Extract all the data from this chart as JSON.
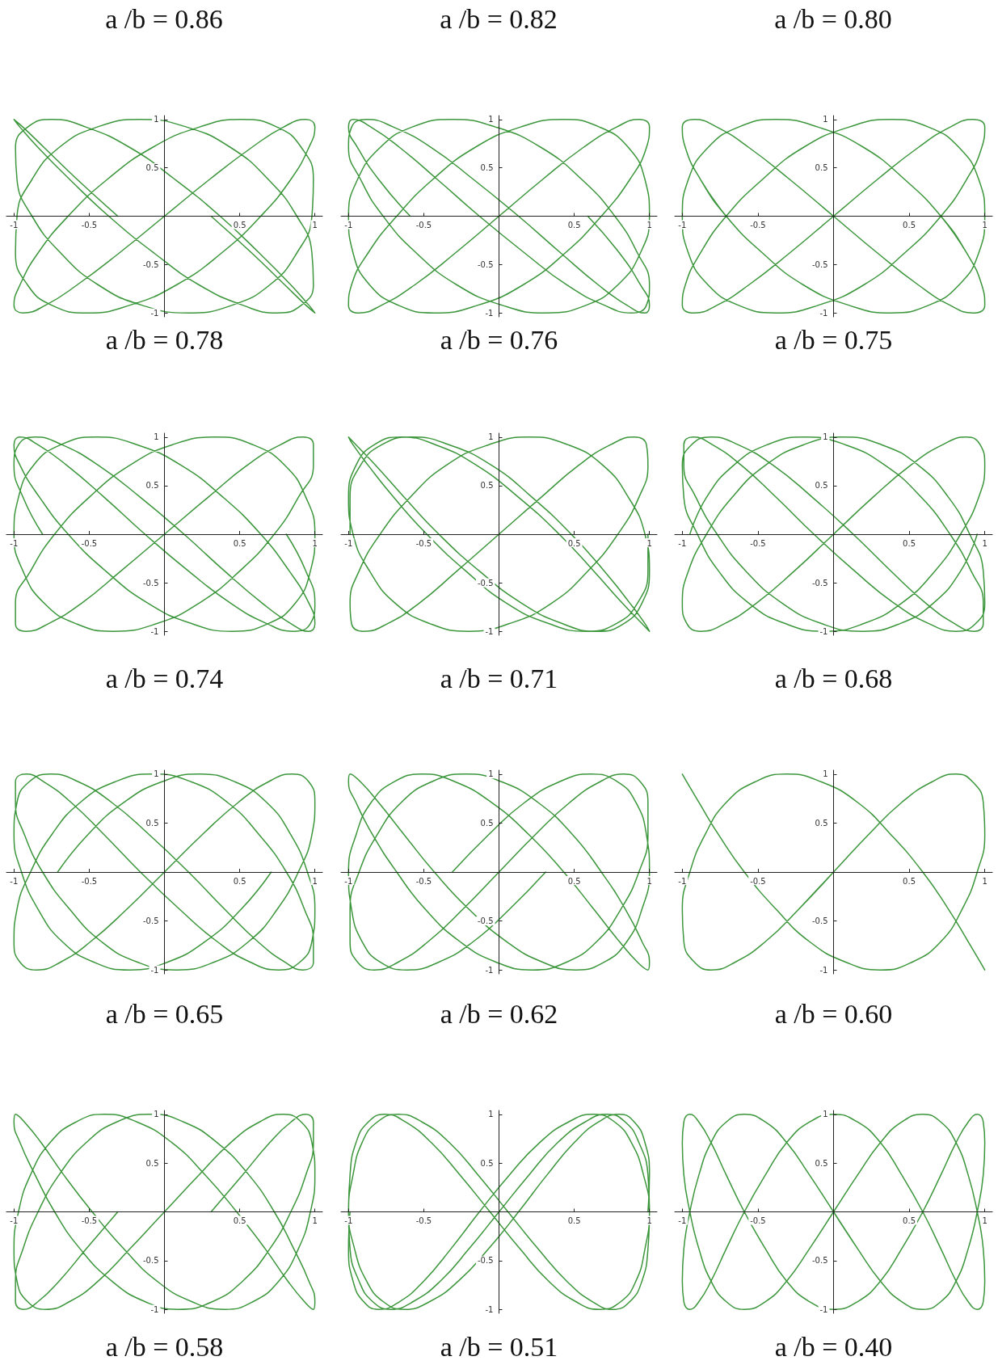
{
  "chart_data": [
    {
      "type": "other",
      "annotations": [
        "a /b = 0.86",
        "a /b = 0.82",
        "a /b = 0.80"
      ]
    },
    {
      "type": "line",
      "title": "a /b = 0.78",
      "color": "#3c963c",
      "xlim": [
        -1.05,
        1.05
      ],
      "ylim": [
        -1.04,
        1.04
      ],
      "xticks": [
        -1,
        -0.5,
        0.5,
        1
      ],
      "yticks": [
        -1,
        -0.5,
        0.5,
        1
      ],
      "x": [
        0.31,
        0.58,
        0.8,
        0.94,
        1,
        0.96,
        0.84,
        0.63,
        0.37,
        0.07,
        -0.23,
        -0.52,
        -0.75,
        -0.91,
        -0.99,
        -0.98,
        -0.88,
        -0.69,
        -0.44,
        -0.15,
        0.16,
        0.45,
        0.7,
        0.88,
        0.98,
        0.99,
        0.91,
        0.75,
        0.51,
        0.23,
        -0.08,
        -0.38,
        -0.64,
        -0.84,
        -0.96,
        -1,
        -0.94,
        -0.79,
        -0.58,
        -0.3,
        0,
        0.3,
        0.58,
        0.79,
        0.94,
        1,
        0.96,
        0.84,
        0.64,
        0.38,
        0.08,
        -0.23,
        -0.51,
        -0.75,
        -0.91,
        -0.99,
        -0.98,
        -0.88,
        -0.7,
        -0.45,
        -0.16,
        0.15,
        0.44,
        0.69,
        0.88,
        0.98,
        0.99,
        0.91,
        0.75,
        0.52,
        0.23,
        -0.07,
        -0.37,
        -0.63,
        -0.84,
        -0.96,
        -1,
        -0.94,
        -0.8,
        -0.58,
        -0.31
      ],
      "values": [
        0,
        -0.38,
        -0.71,
        -0.92,
        -1,
        -0.92,
        -0.71,
        -0.38,
        0,
        0.38,
        0.71,
        0.92,
        1,
        0.92,
        0.71,
        0.38,
        0,
        -0.38,
        -0.71,
        -0.92,
        -1,
        -0.92,
        -0.71,
        -0.38,
        0,
        0.38,
        0.71,
        0.92,
        1,
        0.92,
        0.71,
        0.38,
        0,
        -0.38,
        -0.71,
        -0.92,
        -1,
        -0.92,
        -0.71,
        -0.38,
        0,
        0.38,
        0.71,
        0.92,
        1,
        0.92,
        0.71,
        0.38,
        0,
        -0.38,
        -0.71,
        -0.92,
        -1,
        -0.92,
        -0.71,
        -0.38,
        0,
        0.38,
        0.71,
        0.92,
        1,
        0.92,
        0.71,
        0.38,
        0,
        -0.38,
        -0.71,
        -0.92,
        -1,
        -0.92,
        -0.71,
        -0.38,
        0,
        0.38,
        0.71,
        0.92,
        1,
        0.92,
        0.71,
        0.38,
        0
      ]
    },
    {
      "type": "line",
      "title": "a /b = 0.76",
      "color": "#3c963c",
      "xlim": [
        -1.05,
        1.05
      ],
      "ylim": [
        -1.04,
        1.04
      ],
      "xticks": [
        -1,
        -0.5,
        0.5,
        1
      ],
      "yticks": [
        -1,
        -0.5,
        0.5,
        1
      ],
      "x": [
        0.59,
        0.8,
        0.94,
        1,
        0.97,
        0.85,
        0.66,
        0.41,
        0.13,
        -0.17,
        -0.45,
        -0.7,
        -0.88,
        -0.98,
        -1,
        -0.92,
        -0.77,
        -0.55,
        -0.28,
        0.02,
        0.31,
        0.58,
        0.79,
        0.94,
        1,
        0.97,
        0.86,
        0.67,
        0.43,
        0.14,
        -0.16,
        -0.44,
        -0.68,
        -0.87,
        -0.98,
        -1,
        -0.93,
        -0.78,
        -0.56,
        -0.29,
        0,
        0.29,
        0.56,
        0.78,
        0.93,
        1,
        0.98,
        0.87,
        0.68,
        0.44,
        0.16,
        -0.14,
        -0.43,
        -0.67,
        -0.86,
        -0.97,
        -1,
        -0.94,
        -0.79,
        -0.58,
        -0.31,
        -0.02,
        0.28,
        0.55,
        0.77,
        0.92,
        1,
        0.98,
        0.88,
        0.7,
        0.45,
        0.17,
        -0.13,
        -0.41,
        -0.66,
        -0.85,
        -0.97,
        -1,
        -0.94,
        -0.8,
        -0.59
      ],
      "values": [
        0,
        -0.38,
        -0.71,
        -0.92,
        -1,
        -0.92,
        -0.71,
        -0.38,
        0,
        0.38,
        0.71,
        0.92,
        1,
        0.92,
        0.71,
        0.38,
        0,
        -0.38,
        -0.71,
        -0.92,
        -1,
        -0.92,
        -0.71,
        -0.38,
        0,
        0.38,
        0.71,
        0.92,
        1,
        0.92,
        0.71,
        0.38,
        0,
        -0.38,
        -0.71,
        -0.92,
        -1,
        -0.92,
        -0.71,
        -0.38,
        0,
        0.38,
        0.71,
        0.92,
        1,
        0.92,
        0.71,
        0.38,
        0,
        -0.38,
        -0.71,
        -0.92,
        -1,
        -0.92,
        -0.71,
        -0.38,
        0,
        0.38,
        0.71,
        0.92,
        1,
        0.92,
        0.71,
        0.38,
        0,
        -0.38,
        -0.71,
        -0.92,
        -1,
        -0.92,
        -0.71,
        -0.38,
        0,
        0.38,
        0.71,
        0.92,
        1,
        0.92,
        0.71,
        0.38,
        0
      ]
    },
    {
      "type": "line",
      "title": "a /b = 0.75",
      "color": "#3c963c",
      "xlim": [
        -1.05,
        1.05
      ],
      "ylim": [
        -1.04,
        1.04
      ],
      "xticks": [
        -1,
        -0.5,
        0.5,
        1
      ],
      "yticks": [
        -1,
        -0.5,
        0.5,
        1
      ],
      "x": [
        0.71,
        0.88,
        0.98,
        1,
        0.92,
        0.77,
        0.56,
        0.29,
        0,
        -0.29,
        -0.56,
        -0.77,
        -0.92,
        -1,
        -0.98,
        -0.88,
        -0.71,
        -0.47,
        -0.2,
        0.1,
        0.38,
        0.63,
        0.83,
        0.96,
        1,
        0.96,
        0.83,
        0.63,
        0.38,
        0.1,
        -0.2,
        -0.47,
        -0.71,
        -0.88,
        -0.98,
        -1,
        -0.92,
        -0.77,
        -0.56,
        -0.29,
        0,
        0.29,
        0.56,
        0.77,
        0.92,
        1,
        0.98,
        0.88,
        0.71,
        0.47,
        0.2,
        -0.1,
        -0.38,
        -0.63,
        -0.83,
        -0.96,
        -1,
        -0.96,
        -0.83,
        -0.63,
        -0.38,
        -0.1,
        0.2,
        0.47,
        0.71,
        0.88,
        0.98,
        1,
        0.92,
        0.77,
        0.56,
        0.29,
        0,
        -0.29,
        -0.56,
        -0.77,
        -0.92,
        -1,
        -0.98,
        -0.88,
        -0.71
      ],
      "values": [
        0,
        -0.38,
        -0.71,
        -0.92,
        -1,
        -0.92,
        -0.71,
        -0.38,
        0,
        0.38,
        0.71,
        0.92,
        1,
        0.92,
        0.71,
        0.38,
        0,
        -0.38,
        -0.71,
        -0.92,
        -1,
        -0.92,
        -0.71,
        -0.38,
        0,
        0.38,
        0.71,
        0.92,
        1,
        0.92,
        0.71,
        0.38,
        0,
        -0.38,
        -0.71,
        -0.92,
        -1,
        -0.92,
        -0.71,
        -0.38,
        0,
        0.38,
        0.71,
        0.92,
        1,
        0.92,
        0.71,
        0.38,
        0,
        -0.38,
        -0.71,
        -0.92,
        -1,
        -0.92,
        -0.71,
        -0.38,
        0,
        0.38,
        0.71,
        0.92,
        1,
        0.92,
        0.71,
        0.38,
        0,
        -0.38,
        -0.71,
        -0.92,
        -1,
        -0.92,
        -0.71,
        -0.38,
        0,
        0.38,
        0.71,
        0.92,
        1,
        0.92,
        0.71,
        0.38,
        0
      ]
    },
    {
      "type": "line",
      "title": "a /b = 0.74",
      "color": "#3c963c",
      "xlim": [
        -1.05,
        1.05
      ],
      "ylim": [
        -1.04,
        1.04
      ],
      "xticks": [
        -1,
        -0.5,
        0.5,
        1
      ],
      "yticks": [
        -1,
        -0.5,
        0.5,
        1
      ],
      "x": [
        0.81,
        0.94,
        1,
        0.97,
        0.86,
        0.68,
        0.44,
        0.16,
        -0.13,
        -0.4,
        -0.65,
        -0.84,
        -0.96,
        -1,
        -0.96,
        -0.83,
        -0.64,
        -0.39,
        -0.11,
        0.18,
        0.45,
        0.69,
        0.87,
        0.97,
        1,
        0.94,
        0.8,
        0.59,
        0.34,
        0.05,
        -0.23,
        -0.5,
        -0.73,
        -0.89,
        -0.99,
        -0.99,
        -0.92,
        -0.77,
        -0.55,
        -0.29,
        0,
        0.29,
        0.55,
        0.77,
        0.92,
        0.99,
        0.99,
        0.89,
        0.73,
        0.5,
        0.23,
        -0.05,
        -0.34,
        -0.59,
        -0.8,
        -0.94,
        -1,
        -0.97,
        -0.87,
        -0.69,
        -0.45,
        -0.18,
        0.11,
        0.39,
        0.64,
        0.83,
        0.96,
        1,
        0.96,
        0.84,
        0.65,
        0.4,
        0.13,
        -0.16,
        -0.44,
        -0.68,
        -0.86,
        -0.97,
        -1,
        -0.94,
        -0.81
      ],
      "values": [
        0,
        -0.38,
        -0.71,
        -0.92,
        -1,
        -0.92,
        -0.71,
        -0.38,
        0,
        0.38,
        0.71,
        0.92,
        1,
        0.92,
        0.71,
        0.38,
        0,
        -0.38,
        -0.71,
        -0.92,
        -1,
        -0.92,
        -0.71,
        -0.38,
        0,
        0.38,
        0.71,
        0.92,
        1,
        0.92,
        0.71,
        0.38,
        0,
        -0.38,
        -0.71,
        -0.92,
        -1,
        -0.92,
        -0.71,
        -0.38,
        0,
        0.38,
        0.71,
        0.92,
        1,
        0.92,
        0.71,
        0.38,
        0,
        -0.38,
        -0.71,
        -0.92,
        -1,
        -0.92,
        -0.71,
        -0.38,
        0,
        0.38,
        0.71,
        0.92,
        1,
        0.92,
        0.71,
        0.38,
        0,
        -0.38,
        -0.71,
        -0.92,
        -1,
        -0.92,
        -0.71,
        -0.38,
        0,
        0.38,
        0.71,
        0.92,
        1,
        0.92,
        0.71,
        0.38,
        0
      ]
    },
    {
      "type": "line",
      "title": "a /b = 0.71",
      "color": "#3c963c",
      "xlim": [
        -1.05,
        1.05
      ],
      "ylim": [
        -1.04,
        1.04
      ],
      "xticks": [
        -1,
        -0.5,
        0.5,
        1
      ],
      "yticks": [
        -1,
        -0.5,
        0.5,
        1
      ],
      "x": [
        0.99,
        0.99,
        0.92,
        0.78,
        0.58,
        0.33,
        0.05,
        -0.22,
        -0.48,
        -0.7,
        -0.87,
        -0.97,
        -1,
        -0.95,
        -0.82,
        -0.63,
        -0.4,
        -0.13,
        0.15,
        0.42,
        0.65,
        0.83,
        0.95,
        1,
        0.97,
        0.86,
        0.69,
        0.46,
        0.2,
        -0.07,
        -0.35,
        -0.59,
        -0.79,
        -0.93,
        -0.99,
        -0.98,
        -0.9,
        -0.74,
        -0.53,
        -0.28,
        0,
        0.28,
        0.53,
        0.74,
        0.9,
        0.98,
        0.99,
        0.93,
        0.79,
        0.59,
        0.35,
        0.07,
        -0.2,
        -0.46,
        -0.69,
        -0.86,
        -0.97,
        -1,
        -0.95,
        -0.83,
        -0.65,
        -0.42,
        -0.15,
        0.13,
        0.4,
        0.63,
        0.82,
        0.95,
        1,
        0.97,
        0.87,
        0.7,
        0.48,
        0.22,
        -0.05,
        -0.33,
        -0.58,
        -0.78,
        -0.92,
        -0.99,
        -0.99
      ],
      "values": [
        0,
        -0.38,
        -0.71,
        -0.92,
        -1,
        -0.92,
        -0.71,
        -0.38,
        0,
        0.38,
        0.71,
        0.92,
        1,
        0.92,
        0.71,
        0.38,
        0,
        -0.38,
        -0.71,
        -0.92,
        -1,
        -0.92,
        -0.71,
        -0.38,
        0,
        0.38,
        0.71,
        0.92,
        1,
        0.92,
        0.71,
        0.38,
        0,
        -0.38,
        -0.71,
        -0.92,
        -1,
        -0.92,
        -0.71,
        -0.38,
        0,
        0.38,
        0.71,
        0.92,
        1,
        0.92,
        0.71,
        0.38,
        0,
        -0.38,
        -0.71,
        -0.92,
        -1,
        -0.92,
        -0.71,
        -0.38,
        0,
        0.38,
        0.71,
        0.92,
        1,
        0.92,
        0.71,
        0.38,
        0,
        -0.38,
        -0.71,
        -0.92,
        -1,
        -0.92,
        -0.71,
        -0.38,
        0,
        0.38,
        0.71,
        0.92,
        1,
        0.92,
        0.71,
        0.38,
        0
      ]
    },
    {
      "type": "line",
      "title": "a /b = 0.68",
      "color": "#3c963c",
      "xlim": [
        -1.05,
        1.05
      ],
      "ylim": [
        -1.04,
        1.04
      ],
      "xticks": [
        -1,
        -0.5,
        0.5,
        1
      ],
      "yticks": [
        -1,
        -0.5,
        0.5,
        1
      ],
      "x": [
        0.95,
        0.84,
        0.66,
        0.44,
        0.19,
        -0.08,
        -0.34,
        -0.58,
        -0.77,
        -0.91,
        -0.99,
        -0.99,
        -0.93,
        -0.8,
        -0.61,
        -0.38,
        -0.13,
        0.14,
        0.4,
        0.63,
        0.81,
        0.94,
        1,
        0.99,
        0.9,
        0.76,
        0.56,
        0.32,
        0.06,
        -0.2,
        -0.45,
        -0.67,
        -0.84,
        -0.96,
        -1,
        -0.97,
        -0.88,
        -0.72,
        -0.51,
        -0.26,
        0,
        0.26,
        0.51,
        0.72,
        0.88,
        0.97,
        1,
        0.96,
        0.84,
        0.67,
        0.45,
        0.2,
        -0.06,
        -0.32,
        -0.56,
        -0.76,
        -0.9,
        -0.99,
        -1,
        -0.94,
        -0.81,
        -0.63,
        -0.4,
        -0.14,
        0.13,
        0.38,
        0.61,
        0.8,
        0.93,
        0.99,
        0.99,
        0.91,
        0.77,
        0.58,
        0.34,
        0.08,
        -0.19,
        -0.44,
        -0.66,
        -0.84,
        -0.95
      ],
      "values": [
        0,
        -0.38,
        -0.71,
        -0.92,
        -1,
        -0.92,
        -0.71,
        -0.38,
        0,
        0.38,
        0.71,
        0.92,
        1,
        0.92,
        0.71,
        0.38,
        0,
        -0.38,
        -0.71,
        -0.92,
        -1,
        -0.92,
        -0.71,
        -0.38,
        0,
        0.38,
        0.71,
        0.92,
        1,
        0.92,
        0.71,
        0.38,
        0,
        -0.38,
        -0.71,
        -0.92,
        -1,
        -0.92,
        -0.71,
        -0.38,
        0,
        0.38,
        0.71,
        0.92,
        1,
        0.92,
        0.71,
        0.38,
        0,
        -0.38,
        -0.71,
        -0.92,
        -1,
        -0.92,
        -0.71,
        -0.38,
        0,
        0.38,
        0.71,
        0.92,
        1,
        0.92,
        0.71,
        0.38,
        0,
        -0.38,
        -0.71,
        -0.92,
        -1,
        -0.92,
        -0.71,
        -0.38,
        0,
        0.38,
        0.71,
        0.92,
        1,
        0.92,
        0.71,
        0.38,
        0
      ]
    },
    {
      "type": "line",
      "title": "a /b = 0.65",
      "color": "#3c963c",
      "xlim": [
        -1.05,
        1.05
      ],
      "ylim": [
        -1.04,
        1.04
      ],
      "xticks": [
        -1,
        -0.5,
        0.5,
        1
      ],
      "yticks": [
        -1,
        -0.5,
        0.5,
        1
      ],
      "x": [
        0.71,
        0.51,
        0.27,
        0.02,
        -0.23,
        -0.47,
        -0.68,
        -0.84,
        -0.95,
        -1,
        -0.98,
        -0.9,
        -0.76,
        -0.57,
        -0.35,
        -0.1,
        0.16,
        0.4,
        0.62,
        0.8,
        0.92,
        0.99,
        0.99,
        0.93,
        0.81,
        0.63,
        0.42,
        0.18,
        -0.08,
        -0.33,
        -0.56,
        -0.75,
        -0.89,
        -0.98,
        -1,
        -0.96,
        -0.85,
        -0.69,
        -0.49,
        -0.25,
        0,
        0.25,
        0.49,
        0.69,
        0.85,
        0.96,
        1,
        0.98,
        0.89,
        0.75,
        0.56,
        0.33,
        0.08,
        -0.18,
        -0.42,
        -0.63,
        -0.81,
        -0.93,
        -0.99,
        -0.99,
        -0.92,
        -0.8,
        -0.62,
        -0.4,
        -0.16,
        0.1,
        0.35,
        0.57,
        0.76,
        0.9,
        0.98,
        1,
        0.95,
        0.84,
        0.68,
        0.47,
        0.23,
        -0.02,
        -0.27,
        -0.51,
        -0.71
      ],
      "values": [
        0,
        -0.38,
        -0.71,
        -0.92,
        -1,
        -0.92,
        -0.71,
        -0.38,
        0,
        0.38,
        0.71,
        0.92,
        1,
        0.92,
        0.71,
        0.38,
        0,
        -0.38,
        -0.71,
        -0.92,
        -1,
        -0.92,
        -0.71,
        -0.38,
        0,
        0.38,
        0.71,
        0.92,
        1,
        0.92,
        0.71,
        0.38,
        0,
        -0.38,
        -0.71,
        -0.92,
        -1,
        -0.92,
        -0.71,
        -0.38,
        0,
        0.38,
        0.71,
        0.92,
        1,
        0.92,
        0.71,
        0.38,
        0,
        -0.38,
        -0.71,
        -0.92,
        -1,
        -0.92,
        -0.71,
        -0.38,
        0,
        0.38,
        0.71,
        0.92,
        1,
        0.92,
        0.71,
        0.38,
        0,
        -0.38,
        -0.71,
        -0.92,
        -1,
        -0.92,
        -0.71,
        -0.38,
        0,
        0.38,
        0.71,
        0.92,
        1,
        0.92,
        0.71,
        0.38,
        0
      ]
    },
    {
      "type": "line",
      "title": "a /b = 0.62",
      "color": "#3c963c",
      "xlim": [
        -1.05,
        1.05
      ],
      "ylim": [
        -1.04,
        1.04
      ],
      "xticks": [
        -1,
        -0.5,
        0.5,
        1
      ],
      "yticks": [
        -1,
        -0.5,
        0.5,
        1
      ],
      "x": [
        0.31,
        0.07,
        -0.17,
        -0.4,
        -0.61,
        -0.79,
        -0.91,
        -0.98,
        -1,
        -0.95,
        -0.85,
        -0.7,
        -0.51,
        -0.29,
        -0.05,
        0.2,
        0.43,
        0.63,
        0.8,
        0.92,
        0.99,
        1,
        0.95,
        0.84,
        0.68,
        0.49,
        0.26,
        0.02,
        -0.22,
        -0.45,
        -0.65,
        -0.81,
        -0.93,
        -0.99,
        -0.99,
        -0.94,
        -0.83,
        -0.67,
        -0.47,
        -0.24,
        0,
        0.24,
        0.47,
        0.67,
        0.83,
        0.94,
        0.99,
        0.99,
        0.93,
        0.81,
        0.65,
        0.45,
        0.22,
        -0.02,
        -0.26,
        -0.49,
        -0.68,
        -0.84,
        -0.95,
        -1,
        -0.99,
        -0.92,
        -0.8,
        -0.63,
        -0.43,
        -0.2,
        0.05,
        0.29,
        0.51,
        0.7,
        0.85,
        0.95,
        1,
        0.98,
        0.91,
        0.79,
        0.61,
        0.4,
        0.17,
        -0.07,
        -0.31
      ],
      "values": [
        0,
        -0.38,
        -0.71,
        -0.92,
        -1,
        -0.92,
        -0.71,
        -0.38,
        0,
        0.38,
        0.71,
        0.92,
        1,
        0.92,
        0.71,
        0.38,
        0,
        -0.38,
        -0.71,
        -0.92,
        -1,
        -0.92,
        -0.71,
        -0.38,
        0,
        0.38,
        0.71,
        0.92,
        1,
        0.92,
        0.71,
        0.38,
        0,
        -0.38,
        -0.71,
        -0.92,
        -1,
        -0.92,
        -0.71,
        -0.38,
        0,
        0.38,
        0.71,
        0.92,
        1,
        0.92,
        0.71,
        0.38,
        0,
        -0.38,
        -0.71,
        -0.92,
        -1,
        -0.92,
        -0.71,
        -0.38,
        0,
        0.38,
        0.71,
        0.92,
        1,
        0.92,
        0.71,
        0.38,
        0,
        -0.38,
        -0.71,
        -0.92,
        -1,
        -0.92,
        -0.71,
        -0.38,
        0,
        0.38,
        0.71,
        0.92,
        1,
        0.92,
        0.71,
        0.38,
        0
      ]
    },
    {
      "type": "line",
      "title": "a /b = 0.60",
      "color": "#3c963c",
      "xlim": [
        -1.05,
        1.05
      ],
      "ylim": [
        -1.04,
        1.04
      ],
      "xticks": [
        -1,
        -0.5,
        0.5,
        1
      ],
      "yticks": [
        -1,
        -0.5,
        0.5,
        1
      ],
      "x": [
        0,
        -0.23,
        -0.45,
        -0.65,
        -0.81,
        -0.92,
        -0.99,
        -1,
        -0.95,
        -0.85,
        -0.71,
        -0.52,
        -0.31,
        -0.08,
        0.16,
        0.38,
        0.59,
        0.76,
        0.89,
        0.97,
        1,
        0.97,
        0.89,
        0.76,
        0.59,
        0.38,
        0.16,
        -0.08,
        -0.31,
        -0.52,
        -0.71,
        -0.85,
        -0.95,
        -1,
        -0.99,
        -0.92,
        -0.81,
        -0.65,
        -0.45,
        -0.23,
        0,
        0.23,
        0.45,
        0.65,
        0.81,
        0.92,
        0.99,
        1,
        0.95,
        0.85,
        0.71,
        0.52,
        0.31,
        0.08,
        -0.16,
        -0.38,
        -0.59,
        -0.76,
        -0.89,
        -0.97,
        -1,
        -0.97,
        -0.89,
        -0.76,
        -0.59,
        -0.38,
        -0.16,
        0.08,
        0.31,
        0.52,
        0.71,
        0.85,
        0.95,
        1,
        0.99,
        0.92,
        0.81,
        0.65,
        0.45,
        0.23,
        0,
        -0.23
      ],
      "values": [
        0,
        -0.38,
        -0.71,
        -0.92,
        -1,
        -0.92,
        -0.71,
        -0.38,
        0,
        0.38,
        0.71,
        0.92,
        1,
        0.92,
        0.71,
        0.38,
        0,
        -0.38,
        -0.71,
        -0.92,
        -1,
        -0.92,
        -0.71,
        -0.38,
        0,
        0.38,
        0.71,
        0.92,
        1,
        0.92,
        0.71,
        0.38,
        0,
        -0.38,
        -0.71,
        -0.92,
        -1,
        -0.92,
        -0.71,
        -0.38,
        0,
        0.38,
        0.71,
        0.92,
        1,
        0.92,
        0.71,
        0.38,
        0,
        -0.38,
        -0.71,
        -0.92,
        -1,
        -0.92,
        -0.71,
        -0.38,
        0,
        0.38,
        0.71,
        0.92,
        1,
        0.92,
        0.71,
        0.38,
        0,
        -0.38,
        -0.71,
        -0.92,
        -1,
        -0.92,
        -0.71,
        -0.38,
        0,
        0.38,
        0.71,
        0.92,
        1,
        0.92,
        0.71,
        0.38,
        0,
        -0.38
      ]
    },
    {
      "type": "line",
      "title": "a /b = 0.58",
      "color": "#3c963c",
      "xlim": [
        -1.05,
        1.05
      ],
      "ylim": [
        -1.04,
        1.04
      ],
      "xticks": [
        -1,
        -0.5,
        0.5,
        1
      ],
      "yticks": [
        -1,
        -0.5,
        0.5,
        1
      ],
      "x": [
        -0.31,
        -0.52,
        -0.7,
        -0.84,
        -0.94,
        -0.99,
        -0.99,
        -0.94,
        -0.84,
        -0.7,
        -0.52,
        -0.32,
        -0.09,
        0.13,
        0.35,
        0.56,
        0.73,
        0.86,
        0.96,
        1,
        0.99,
        0.93,
        0.82,
        0.67,
        0.48,
        0.27,
        0.05,
        -0.18,
        -0.4,
        -0.59,
        -0.76,
        -0.89,
        -0.97,
        -1,
        -0.98,
        -0.91,
        -0.79,
        -0.63,
        -0.44,
        -0.23,
        0,
        0.23,
        0.44,
        0.63,
        0.79,
        0.91,
        0.98,
        1,
        0.97,
        0.89,
        0.76,
        0.59,
        0.4,
        0.18,
        -0.05,
        -0.27,
        -0.48,
        -0.67,
        -0.82,
        -0.93,
        -0.99,
        -1,
        -0.96,
        -0.86,
        -0.73,
        -0.56,
        -0.35,
        -0.13,
        0.09,
        0.32,
        0.52,
        0.7,
        0.84,
        0.94,
        0.99,
        0.99,
        0.94,
        0.84,
        0.7,
        0.52,
        0.31
      ],
      "values": [
        0,
        -0.38,
        -0.71,
        -0.92,
        -1,
        -0.92,
        -0.71,
        -0.38,
        0,
        0.38,
        0.71,
        0.92,
        1,
        0.92,
        0.71,
        0.38,
        0,
        -0.38,
        -0.71,
        -0.92,
        -1,
        -0.92,
        -0.71,
        -0.38,
        0,
        0.38,
        0.71,
        0.92,
        1,
        0.92,
        0.71,
        0.38,
        0,
        -0.38,
        -0.71,
        -0.92,
        -1,
        -0.92,
        -0.71,
        -0.38,
        0,
        0.38,
        0.71,
        0.92,
        1,
        0.92,
        0.71,
        0.38,
        0,
        -0.38,
        -0.71,
        -0.92,
        -1,
        -0.92,
        -0.71,
        -0.38,
        0,
        0.38,
        0.71,
        0.92,
        1,
        0.92,
        0.71,
        0.38,
        0,
        -0.38,
        -0.71,
        -0.92,
        -1,
        -0.92,
        -0.71,
        -0.38,
        0,
        0.38,
        0.71,
        0.92,
        1,
        0.92,
        0.71,
        0.38,
        0
      ]
    },
    {
      "type": "line",
      "title": "a /b = 0.51",
      "color": "#3c963c",
      "xlim": [
        -1.05,
        1.05
      ],
      "ylim": [
        -1.04,
        1.04
      ],
      "xticks": [
        -1,
        -0.5,
        0.5,
        1
      ],
      "yticks": [
        -1,
        -0.5,
        0.5,
        1
      ],
      "x": [
        -0.99,
        -1,
        -0.97,
        -0.9,
        -0.8,
        -0.66,
        -0.5,
        -0.32,
        -0.13,
        0.07,
        0.27,
        0.46,
        0.63,
        0.77,
        0.88,
        0.96,
        1,
        0.99,
        0.95,
        0.87,
        0.76,
        0.62,
        0.45,
        0.26,
        0.06,
        -0.14,
        -0.33,
        -0.51,
        -0.67,
        -0.81,
        -0.91,
        -0.97,
        -1,
        -0.99,
        -0.93,
        -0.84,
        -0.72,
        -0.57,
        -0.39,
        -0.2,
        0,
        0.2,
        0.39,
        0.57,
        0.72,
        0.84,
        0.93,
        0.99,
        1,
        0.97,
        0.91,
        0.81,
        0.67,
        0.51,
        0.33,
        0.14,
        -0.06,
        -0.26,
        -0.45,
        -0.62,
        -0.76,
        -0.87,
        -0.95,
        -0.99,
        -1,
        -0.96,
        -0.88,
        -0.77,
        -0.63,
        -0.46,
        -0.27,
        -0.07,
        0.13,
        0.32,
        0.5,
        0.66,
        0.8,
        0.9,
        0.97,
        1,
        0.99
      ],
      "values": [
        0,
        -0.38,
        -0.71,
        -0.92,
        -1,
        -0.92,
        -0.71,
        -0.38,
        0,
        0.38,
        0.71,
        0.92,
        1,
        0.92,
        0.71,
        0.38,
        0,
        -0.38,
        -0.71,
        -0.92,
        -1,
        -0.92,
        -0.71,
        -0.38,
        0,
        0.38,
        0.71,
        0.92,
        1,
        0.92,
        0.71,
        0.38,
        0,
        -0.38,
        -0.71,
        -0.92,
        -1,
        -0.92,
        -0.71,
        -0.38,
        0,
        0.38,
        0.71,
        0.92,
        1,
        0.92,
        0.71,
        0.38,
        0,
        -0.38,
        -0.71,
        -0.92,
        -1,
        -0.92,
        -0.71,
        -0.38,
        0,
        0.38,
        0.71,
        0.92,
        1,
        0.92,
        0.71,
        0.38,
        0,
        -0.38,
        -0.71,
        -0.92,
        -1,
        -0.92,
        -0.71,
        -0.38,
        0,
        0.38,
        0.71,
        0.92,
        1,
        0.92,
        0.71,
        0.38,
        0
      ]
    },
    {
      "type": "line",
      "title": "a /b = 0.40",
      "color": "#3c963c",
      "xlim": [
        -1.05,
        1.05
      ],
      "ylim": [
        -1.04,
        1.04
      ],
      "xticks": [
        -1,
        -0.5,
        0.5,
        1
      ],
      "yticks": [
        -1,
        -0.5,
        0.5,
        1
      ],
      "x": [
        0,
        0.16,
        0.31,
        0.45,
        0.59,
        0.71,
        0.81,
        0.89,
        0.95,
        0.99,
        1,
        0.99,
        0.95,
        0.89,
        0.81,
        0.71,
        0.59,
        0.45,
        0.31,
        0.16,
        0,
        -0.16,
        -0.31,
        -0.45,
        -0.59,
        -0.71,
        -0.81,
        -0.89,
        -0.95,
        -0.99,
        -1,
        -0.99,
        -0.95,
        -0.89,
        -0.81,
        -0.71,
        -0.59,
        -0.45,
        -0.31,
        -0.16,
        0,
        0.16,
        0.31,
        0.45,
        0.59,
        0.71,
        0.81,
        0.89,
        0.95,
        0.99,
        1,
        0.99,
        0.95,
        0.89,
        0.81,
        0.71,
        0.59,
        0.45,
        0.31,
        0.16,
        0,
        -0.16,
        -0.31,
        -0.45,
        -0.59,
        -0.71,
        -0.81,
        -0.89,
        -0.95,
        -0.99,
        -1,
        -0.99,
        -0.95,
        -0.89,
        -0.81,
        -0.71,
        -0.59,
        -0.45,
        -0.31,
        -0.16,
        0,
        0.16
      ],
      "values": [
        0,
        -0.38,
        -0.71,
        -0.92,
        -1,
        -0.92,
        -0.71,
        -0.38,
        0,
        0.38,
        0.71,
        0.92,
        1,
        0.92,
        0.71,
        0.38,
        0,
        -0.38,
        -0.71,
        -0.92,
        -1,
        -0.92,
        -0.71,
        -0.38,
        0,
        0.38,
        0.71,
        0.92,
        1,
        0.92,
        0.71,
        0.38,
        0,
        -0.38,
        -0.71,
        -0.92,
        -1,
        -0.92,
        -0.71,
        -0.38,
        0,
        0.38,
        0.71,
        0.92,
        1,
        0.92,
        0.71,
        0.38,
        0,
        -0.38,
        -0.71,
        -0.92,
        -1,
        -0.92,
        -0.71,
        -0.38,
        0,
        0.38,
        0.71,
        0.92,
        1,
        0.92,
        0.71,
        0.38,
        0,
        -0.38,
        -0.71,
        -0.92,
        -1,
        -0.92,
        -0.71,
        -0.38,
        0,
        0.38,
        0.71,
        0.92,
        1,
        0.92,
        0.71,
        0.38,
        0,
        -0.38
      ]
    }
  ]
}
